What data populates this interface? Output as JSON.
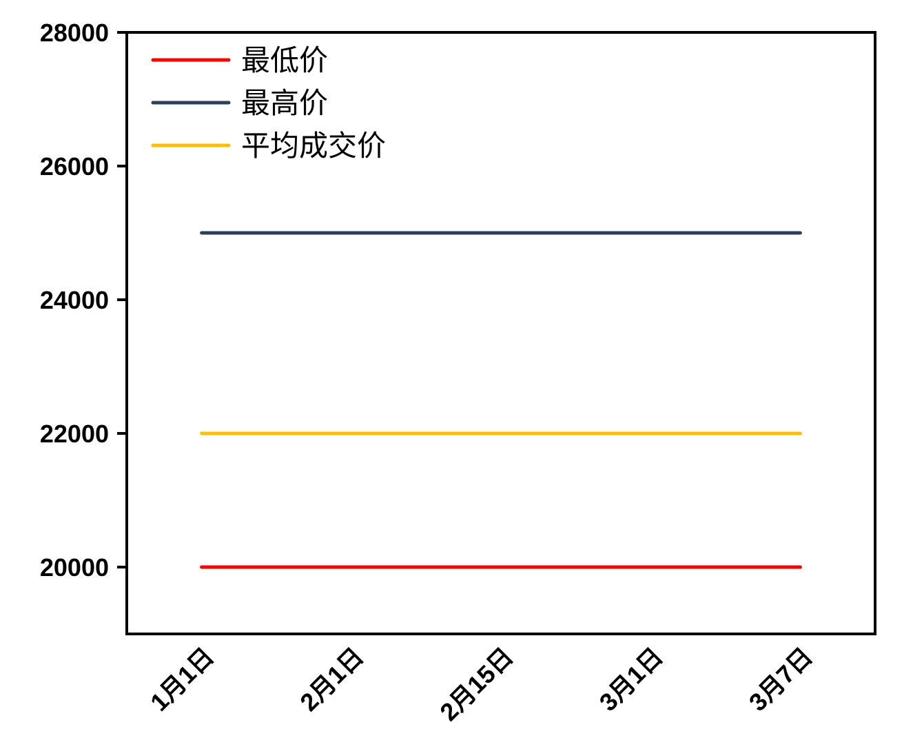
{
  "chart_data": {
    "type": "line",
    "categories": [
      "1月1日",
      "2月1日",
      "2月15日",
      "3月1日",
      "3月7日"
    ],
    "series": [
      {
        "name": "最低价",
        "color": "#ff0000",
        "values": [
          20000,
          20000,
          20000,
          20000,
          20000
        ]
      },
      {
        "name": "最高价",
        "color": "#2c3e5a",
        "values": [
          25000,
          25000,
          25000,
          25000,
          25000
        ]
      },
      {
        "name": "平均成交价",
        "color": "#ffc000",
        "values": [
          22000,
          22000,
          22000,
          22000,
          22000
        ]
      }
    ],
    "ylim": [
      19000,
      28000
    ],
    "yticks": [
      20000,
      22000,
      24000,
      26000,
      28000
    ],
    "legend": "upper left",
    "grid": false
  }
}
